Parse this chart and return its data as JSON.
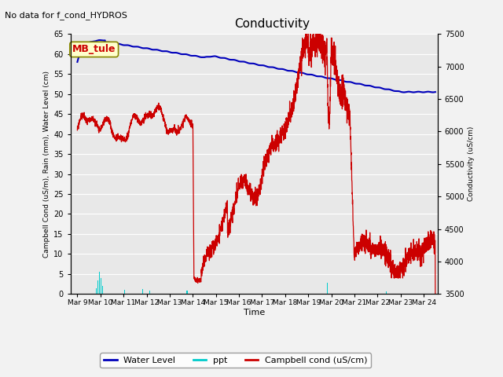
{
  "title": "Conductivity",
  "subtitle": "No data for f_cond_HYDROS",
  "xlabel": "Time",
  "ylabel_left": "Campbell Cond (uS/m), Rain (mm), Water Level (cm)",
  "ylabel_right": "Conductivity (uS/cm)",
  "site_label": "MB_tule",
  "ylim_left": [
    0,
    65
  ],
  "ylim_right": [
    3500,
    7500
  ],
  "xtick_labels": [
    "Mar 9",
    "Mar 10",
    "Mar 11",
    "Mar 12",
    "Mar 13",
    "Mar 14",
    "Mar 15",
    "Mar 16",
    "Mar 17",
    "Mar 18",
    "Mar 19",
    "Mar 20",
    "Mar 21",
    "Mar 22",
    "Mar 23",
    "Mar 24"
  ],
  "xtick_positions": [
    0,
    1,
    2,
    3,
    4,
    5,
    6,
    7,
    8,
    9,
    10,
    11,
    12,
    13,
    14,
    15
  ],
  "ytick_left": [
    0,
    5,
    10,
    15,
    20,
    25,
    30,
    35,
    40,
    45,
    50,
    55,
    60,
    65
  ],
  "ytick_right": [
    3500,
    4000,
    4500,
    5000,
    5500,
    6000,
    6500,
    7000,
    7500
  ],
  "bg_color": "#e8e8e8",
  "grid_color": "#ffffff",
  "fig_bg": "#f2f2f2",
  "water_level_color": "#0000bb",
  "ppt_color": "#00cccc",
  "campbell_color": "#cc0000",
  "legend_bg_box": "#ffffcc",
  "site_label_color": "#cc0000"
}
